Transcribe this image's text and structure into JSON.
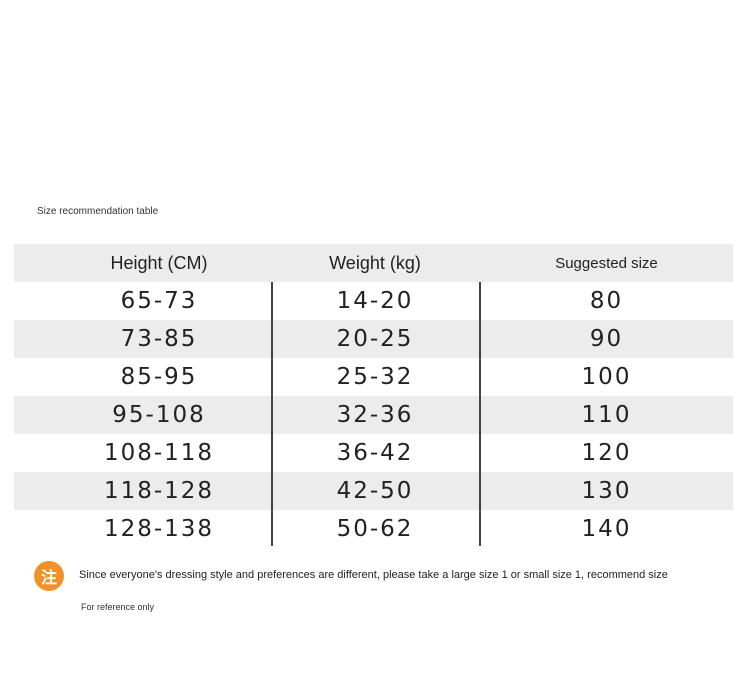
{
  "title": "Size recommendation table",
  "columns": [
    "Height (CM)",
    "Weight (kg)",
    "Suggested size"
  ],
  "rows": [
    {
      "height": "65-73",
      "weight": "14-20",
      "size": "80"
    },
    {
      "height": "73-85",
      "weight": "20-25",
      "size": "90"
    },
    {
      "height": "85-95",
      "weight": "25-32",
      "size": "100"
    },
    {
      "height": "95-108",
      "weight": "32-36",
      "size": "110"
    },
    {
      "height": "108-118",
      "weight": "36-42",
      "size": "120"
    },
    {
      "height": "118-128",
      "weight": "42-50",
      "size": "130"
    },
    {
      "height": "128-138",
      "weight": "50-62",
      "size": "140"
    }
  ],
  "note": {
    "icon_glyph": "注",
    "text": "Since everyone's dressing style and preferences are different, please take a large size 1 or small size 1, recommend size",
    "reference": "For reference only",
    "accent_color": "#f0922a"
  }
}
